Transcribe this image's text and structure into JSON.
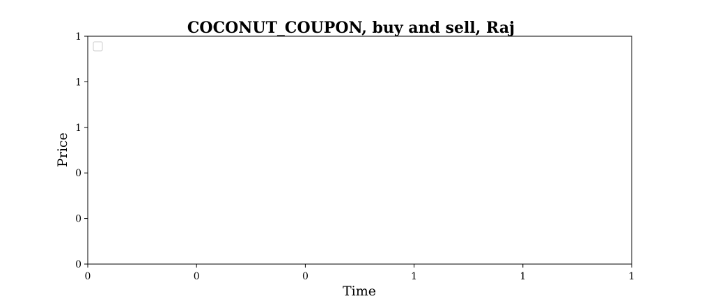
{
  "chart_data": {
    "type": "line",
    "title": "COCONUT_COUPON, buy and sell, Raj",
    "xlabel": "Time",
    "ylabel": "Price",
    "x_tick_labels": [
      "0",
      "0",
      "0",
      "1",
      "1",
      "1"
    ],
    "y_tick_labels": [
      "0",
      "0",
      "0",
      "1",
      "1",
      "1"
    ],
    "series": [],
    "legend": {
      "placement": "top-left",
      "entries": []
    },
    "grid": false,
    "colors": {
      "axis": "#000000",
      "background": "#ffffff",
      "legend_border": "#cccccc"
    }
  }
}
